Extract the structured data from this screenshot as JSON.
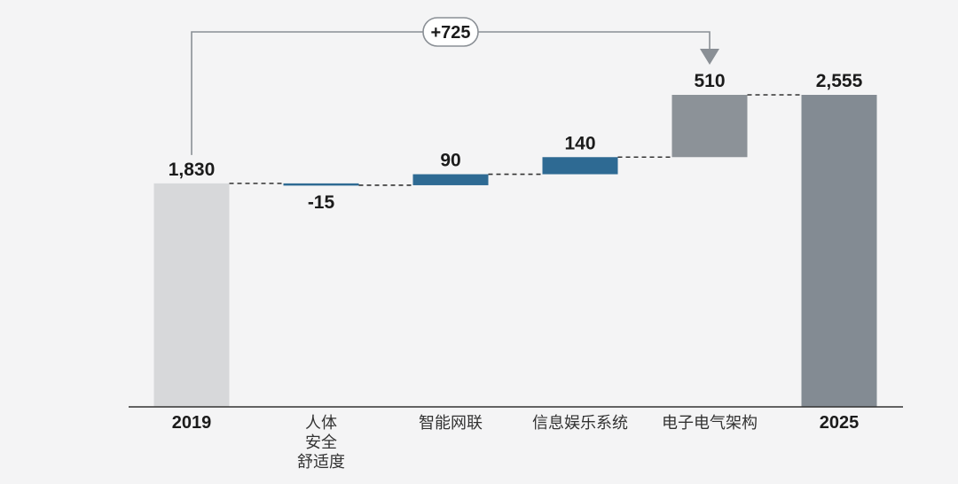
{
  "chart_data": {
    "type": "bar",
    "subtype": "waterfall",
    "categories": [
      "2019",
      "人体\n安全\n舒适度",
      "智能网联",
      "信息娱乐系统",
      "电子电气架构",
      "2025"
    ],
    "values": [
      1830,
      -15,
      90,
      140,
      510,
      2555
    ],
    "value_labels": [
      "1,830",
      "-15",
      "90",
      "140",
      "510",
      "2,555"
    ],
    "kinds": [
      "total",
      "delta",
      "delta",
      "delta",
      "delta",
      "total"
    ],
    "ylim": [
      0,
      2555
    ],
    "grid": false,
    "legend": "none",
    "title": "",
    "xlabel": "",
    "ylabel": "",
    "callout": {
      "label": "+725",
      "from_category": "2019",
      "to_category": "电子电气架构"
    },
    "colors": {
      "background": "#f4f4f5",
      "start_total": "#d7d8da",
      "end_total": "#838b93",
      "delta_blue": "#2e6a93",
      "delta_gray": "#8c9298",
      "connector": "#333333",
      "axis": "#333333",
      "callout_line": "#8a8f95"
    }
  }
}
